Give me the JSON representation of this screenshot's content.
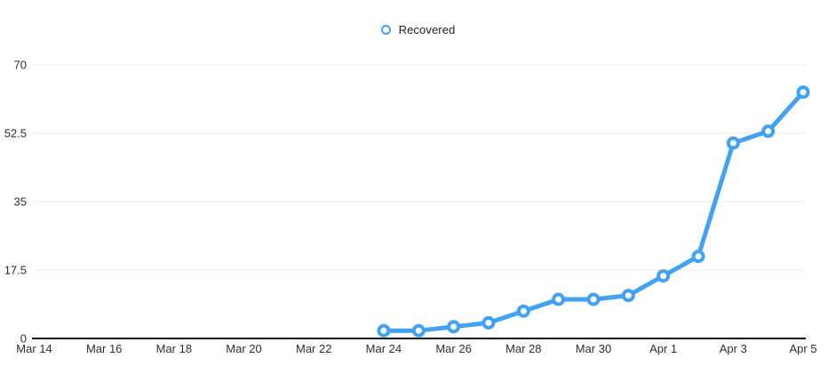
{
  "chart_data": {
    "type": "line",
    "title": "",
    "legend_position": "top-center",
    "grid": "horizontal-only",
    "line_color": "#41A1F4",
    "point_style": "hollow-circle",
    "point_fill": "#ffffff",
    "axis_color": "#141414",
    "gridline_color": "#e9e9e9",
    "label_color": "#2e2e2e",
    "ylim": [
      0,
      70
    ],
    "y_ticks": [
      {
        "label": "0",
        "value": 0
      },
      {
        "label": "17.5",
        "value": 17.5
      },
      {
        "label": "35",
        "value": 35
      },
      {
        "label": "52.5",
        "value": 52.5
      },
      {
        "label": "70",
        "value": 70
      }
    ],
    "x_ticks": [
      {
        "label": "Mar 14",
        "day": 0
      },
      {
        "label": "Mar 16",
        "day": 2
      },
      {
        "label": "Mar 18",
        "day": 4
      },
      {
        "label": "Mar 20",
        "day": 6
      },
      {
        "label": "Mar 22",
        "day": 8
      },
      {
        "label": "Mar 24",
        "day": 10
      },
      {
        "label": "Mar 26",
        "day": 12
      },
      {
        "label": "Mar 28",
        "day": 14
      },
      {
        "label": "Mar 30",
        "day": 16
      },
      {
        "label": "Apr 1",
        "day": 18
      },
      {
        "label": "Apr 3",
        "day": 20
      },
      {
        "label": "Apr 5",
        "day": 22
      }
    ],
    "series": [
      {
        "name": "Recovered",
        "points": [
          {
            "date": "Mar 24",
            "day": 10,
            "value": 2
          },
          {
            "date": "Mar 25",
            "day": 11,
            "value": 2
          },
          {
            "date": "Mar 26",
            "day": 12,
            "value": 3
          },
          {
            "date": "Mar 27",
            "day": 13,
            "value": 4
          },
          {
            "date": "Mar 28",
            "day": 14,
            "value": 7
          },
          {
            "date": "Mar 29",
            "day": 15,
            "value": 10
          },
          {
            "date": "Mar 30",
            "day": 16,
            "value": 10
          },
          {
            "date": "Mar 31",
            "day": 17,
            "value": 11
          },
          {
            "date": "Apr 1",
            "day": 18,
            "value": 16
          },
          {
            "date": "Apr 2",
            "day": 19,
            "value": 21
          },
          {
            "date": "Apr 3",
            "day": 20,
            "value": 50
          },
          {
            "date": "Apr 4",
            "day": 21,
            "value": 53
          },
          {
            "date": "Apr 5",
            "day": 22,
            "value": 63
          }
        ]
      }
    ]
  }
}
